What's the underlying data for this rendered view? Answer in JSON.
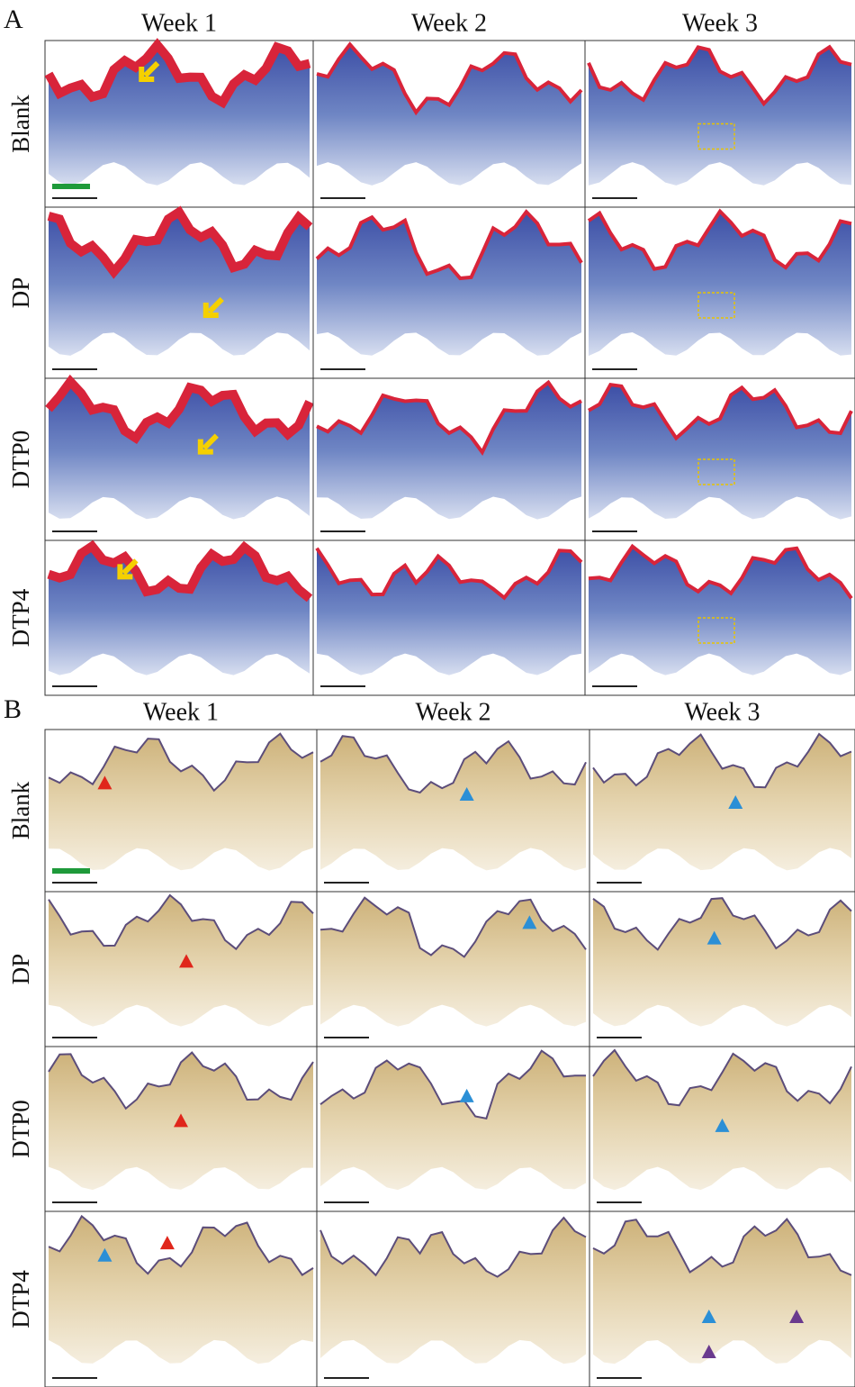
{
  "panels": [
    {
      "label": "A",
      "columns": [
        "Week 1",
        "Week 2",
        "Week 3"
      ],
      "rows": [
        "Blank",
        "DP",
        "DTP0",
        "DTP4"
      ]
    },
    {
      "label": "B",
      "columns": [
        "Week 1",
        "Week 2",
        "Week 3"
      ],
      "rows": [
        "Blank",
        "DP",
        "DTP0",
        "DTP4"
      ]
    }
  ]
}
